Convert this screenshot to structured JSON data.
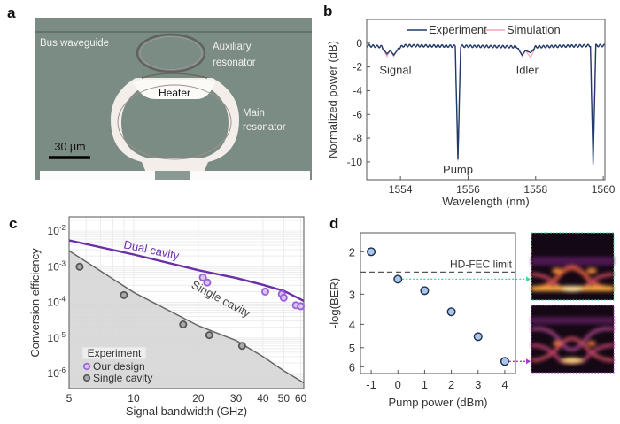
{
  "panels": {
    "a": {
      "label": "a",
      "annotations": {
        "bus": "Bus waveguide",
        "aux1": "Auxiliary",
        "aux2": "resonator",
        "heater": "Heater",
        "main1": "Main",
        "main2": "resonator",
        "scale": "30 μm"
      },
      "colors": {
        "substrate": "#7b8c84",
        "metal": "#f3eeea",
        "ring": "#b39a98"
      }
    },
    "b": {
      "label": "b"
    },
    "c": {
      "label": "c"
    },
    "d": {
      "label": "d"
    }
  },
  "chart_data": [
    {
      "panel": "b",
      "type": "line",
      "xlabel": "Wavelength (nm)",
      "ylabel": "Normalized power (dB)",
      "xlim": [
        1553.0,
        1560.05
      ],
      "ylim": [
        -11.5,
        2
      ],
      "xticks": [
        1554,
        1556,
        1558,
        1560
      ],
      "yticks": [
        0,
        -2,
        -4,
        -6,
        -8,
        -10
      ],
      "grid": false,
      "legend": "top",
      "series": [
        {
          "name": "Experiment",
          "color": "#1f3a6b",
          "points": [
            [
              1553.0,
              -0.2
            ],
            [
              1553.45,
              -0.3
            ],
            [
              1553.6,
              -0.9
            ],
            [
              1553.7,
              -0.6
            ],
            [
              1553.8,
              -1.0
            ],
            [
              1553.95,
              -0.4
            ],
            [
              1554.1,
              -0.2
            ],
            [
              1555.62,
              -0.25
            ],
            [
              1555.7,
              -9.8
            ],
            [
              1555.78,
              -0.25
            ],
            [
              1557.45,
              -0.3
            ],
            [
              1557.6,
              -1.0
            ],
            [
              1557.7,
              -0.6
            ],
            [
              1557.85,
              -0.8
            ],
            [
              1558.0,
              -0.3
            ],
            [
              1559.62,
              -0.2
            ],
            [
              1559.7,
              -10.2
            ],
            [
              1559.78,
              -0.2
            ],
            [
              1560.05,
              -0.2
            ]
          ]
        },
        {
          "name": "Simulation",
          "color": "#f4a3ad",
          "points": [
            [
              1553.0,
              -0.2
            ],
            [
              1553.45,
              -0.3
            ],
            [
              1553.6,
              -1.1
            ],
            [
              1553.7,
              -0.6
            ],
            [
              1553.8,
              -1.1
            ],
            [
              1553.95,
              -0.4
            ],
            [
              1554.1,
              -0.2
            ],
            [
              1555.62,
              -0.25
            ],
            [
              1555.7,
              -9.9
            ],
            [
              1555.78,
              -0.25
            ],
            [
              1557.45,
              -0.3
            ],
            [
              1557.6,
              -1.1
            ],
            [
              1557.7,
              -0.6
            ],
            [
              1557.85,
              -1.2
            ],
            [
              1558.0,
              -0.3
            ],
            [
              1559.62,
              -0.2
            ],
            [
              1559.7,
              -10.0
            ],
            [
              1559.78,
              -0.2
            ],
            [
              1560.05,
              -0.2
            ]
          ]
        }
      ],
      "annotations": [
        {
          "text": "Signal",
          "x": 1553.85,
          "y": -2.2
        },
        {
          "text": "Idler",
          "x": 1557.75,
          "y": -2.2
        },
        {
          "text": "Pump",
          "x": 1555.7,
          "y": -10.6
        }
      ]
    },
    {
      "panel": "c",
      "type": "scatter",
      "xlabel": "Signal bandwidth (GHz)",
      "ylabel": "Conversion efficiency",
      "xscale": "log",
      "yscale": "log",
      "xlim": [
        5,
        62
      ],
      "ylim": [
        3.8e-07,
        0.025
      ],
      "xticks": [
        5,
        10,
        20,
        30,
        40,
        50,
        60
      ],
      "yticks": [
        -2,
        -3,
        -4,
        -5,
        -6
      ],
      "grid": true,
      "legend": "bottom-left",
      "legend_title": "Experiment",
      "lines": [
        {
          "name": "Dual cavity",
          "color": "#6a2fa8",
          "points": [
            [
              5,
              0.0055
            ],
            [
              10,
              0.0022
            ],
            [
              20,
              0.0008
            ],
            [
              30,
              0.00048
            ],
            [
              40,
              0.00031
            ],
            [
              50,
              0.00021
            ],
            [
              62,
              0.00011
            ]
          ],
          "label_at": [
            12,
            0.0023
          ]
        },
        {
          "name": "Single cavity",
          "color": "#666666",
          "points": [
            [
              5,
              0.0028
            ],
            [
              10,
              0.00019
            ],
            [
              20,
              2.2e-05
            ],
            [
              30,
              8.5e-06
            ],
            [
              40,
              3e-06
            ],
            [
              50,
              1.2e-06
            ],
            [
              62,
              5.5e-07
            ]
          ],
          "label_at": [
            25,
            0.0001
          ],
          "fill": "#d6d6d6"
        }
      ],
      "series": [
        {
          "name": "Our design",
          "color": "#9a5fd6",
          "x": [
            21,
            22,
            41,
            49,
            50,
            57,
            60
          ],
          "y": [
            0.0005,
            0.00036,
            0.0002,
            0.00017,
            0.000135,
            8.3e-05,
            7.8e-05
          ]
        },
        {
          "name": "Single cavity",
          "color": "#555555",
          "x": [
            5.6,
            9,
            17,
            22.5,
            32
          ],
          "y": [
            0.001,
            0.00016,
            2.4e-05,
            1.2e-05,
            6e-06
          ]
        }
      ]
    },
    {
      "panel": "d",
      "type": "scatter",
      "xlabel": "Pump power (dBm)",
      "ylabel": "-log(BER)",
      "yscale": "log",
      "yinverted": true,
      "xlim": [
        -1.4,
        4.4
      ],
      "ylim": [
        1.67,
        6.4
      ],
      "xticks": [
        -1,
        0,
        1,
        2,
        3,
        4
      ],
      "yticks": [
        2,
        3,
        4,
        5,
        6
      ],
      "grid": false,
      "x": [
        -1,
        0,
        1,
        2,
        3,
        4
      ],
      "y": [
        2.0,
        2.6,
        2.9,
        3.55,
        4.5,
        5.7
      ],
      "marker_color": "#a9c6ee",
      "threshold": {
        "label": "HD-FEC limit",
        "value": 2.43
      },
      "eye_links": [
        {
          "x": 0,
          "y": 2.6,
          "color": "#3fd6a0"
        },
        {
          "x": 4,
          "y": 5.7,
          "color": "#9b3fc8"
        }
      ]
    }
  ]
}
